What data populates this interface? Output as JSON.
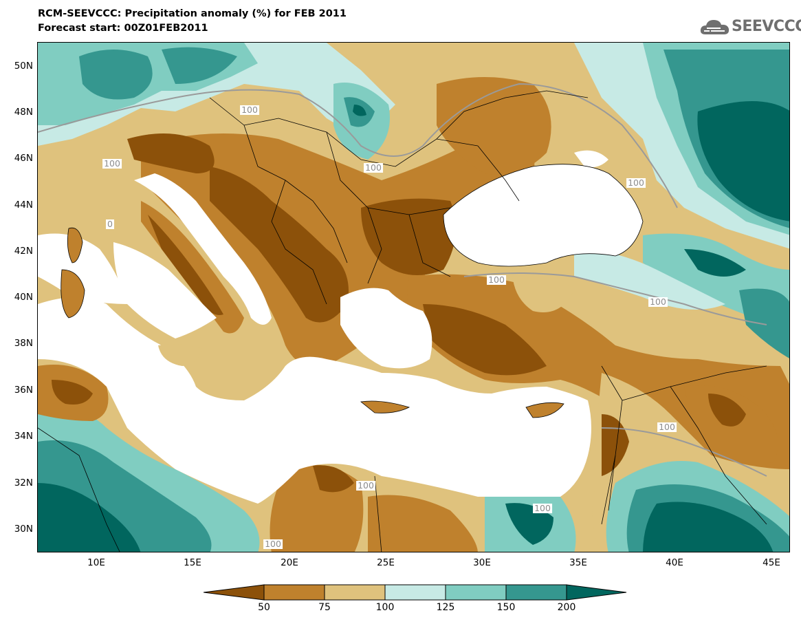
{
  "title_line1": "RCM-SEEVCCC: Precipitation anomaly (%) for FEB 2011",
  "title_line2": "Forecast start: 00Z01FEB2011",
  "logo_text": "SEEVCCC",
  "lat_labels": [
    "50N",
    "48N",
    "46N",
    "44N",
    "42N",
    "40N",
    "38N",
    "36N",
    "34N",
    "32N",
    "30N"
  ],
  "lon_labels": [
    "10E",
    "15E",
    "20E",
    "25E",
    "30E",
    "35E",
    "40E",
    "45E"
  ],
  "contour_labels": [
    "100",
    "100",
    "100",
    "100",
    "100",
    "100",
    "100",
    "100",
    "100",
    "100",
    "0"
  ],
  "colorbar": {
    "labels": [
      "50",
      "75",
      "100",
      "125",
      "150",
      "200"
    ],
    "colors": [
      "#8c510a",
      "#bf812d",
      "#dfc27d",
      "#c7eae5",
      "#80cdc1",
      "#35978f",
      "#01665e"
    ]
  },
  "palette": {
    "sea": "#ffffff",
    "dark_brown": "#8c510a",
    "brown": "#bf812d",
    "tan": "#dfc27d",
    "pale_teal": "#c7eae5",
    "light_teal": "#80cdc1",
    "teal": "#35978f",
    "dark_teal": "#01665e",
    "contour_line": "#9a9a9a",
    "border_line": "#000000"
  }
}
